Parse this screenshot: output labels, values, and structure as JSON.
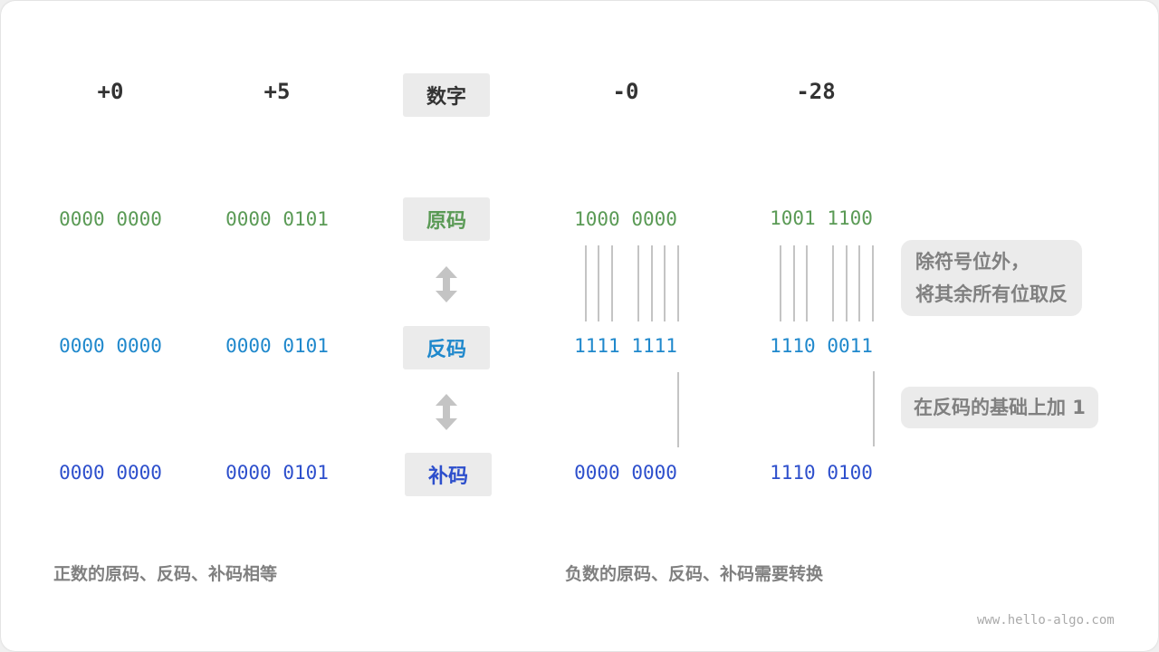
{
  "headers": [
    "+0",
    "+5",
    "-0",
    "-28"
  ],
  "row_labels": {
    "header": "数字",
    "sign_magnitude": "原码",
    "ones_complement": "反码",
    "twos_complement": "补码"
  },
  "columns": [
    {
      "number": "+0",
      "sign_magnitude": "0000 0000",
      "ones_complement": "0000 0000",
      "twos_complement": "0000 0000"
    },
    {
      "number": "+5",
      "sign_magnitude": "0000 0101",
      "ones_complement": "0000 0101",
      "twos_complement": "0000 0101"
    },
    {
      "number": "-0",
      "sign_magnitude": "1000 0000",
      "ones_complement": "1111 1111",
      "twos_complement": "0000 0000"
    },
    {
      "number": "-28",
      "sign_magnitude": "1001 1100",
      "ones_complement": "1110 0011",
      "twos_complement": "1110 0100"
    }
  ],
  "notes": {
    "invert_line1": "除符号位外，",
    "invert_line2": "将其余所有位取反",
    "add_one": "在反码的基础上加 1"
  },
  "captions": {
    "positive": "正数的原码、反码、补码相等",
    "negative": "负数的原码、反码、补码需要转换"
  },
  "watermark": "www.hello-algo.com",
  "colors": {
    "sign_magnitude": "#5a9a55",
    "ones_complement": "#1f88cc",
    "twos_complement": "#2d4fcc",
    "label_bg": "#ebebeb"
  }
}
